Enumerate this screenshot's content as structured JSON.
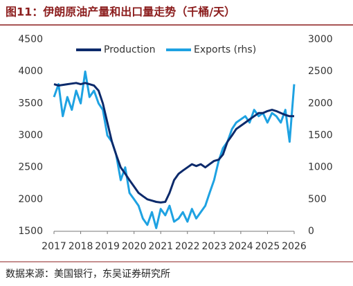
{
  "chart_data": {
    "type": "line",
    "title": "图11：伊朗原油产量和出口量走势（千桶/天）",
    "source": "数据来源：美国银行，东吴证券研究所",
    "x": [
      2017,
      2017.17,
      2017.33,
      2017.5,
      2017.67,
      2017.83,
      2018,
      2018.17,
      2018.33,
      2018.5,
      2018.67,
      2018.83,
      2019,
      2019.17,
      2019.33,
      2019.5,
      2019.67,
      2019.83,
      2020,
      2020.17,
      2020.33,
      2020.5,
      2020.67,
      2020.83,
      2021,
      2021.17,
      2021.33,
      2021.5,
      2021.67,
      2021.83,
      2022,
      2022.17,
      2022.33,
      2022.5,
      2022.67,
      2022.83,
      2023,
      2023.17,
      2023.33,
      2023.5,
      2023.67,
      2023.83,
      2024,
      2024.17,
      2024.33,
      2024.5,
      2024.67,
      2024.83,
      2025,
      2025.17,
      2025.33,
      2025.5,
      2025.67,
      2025.83,
      2026
    ],
    "series": [
      {
        "name": "Production",
        "color": "#0c2a6b",
        "axis": "y",
        "values": [
          3800,
          3780,
          3790,
          3800,
          3810,
          3820,
          3800,
          3820,
          3800,
          3780,
          3700,
          3500,
          3200,
          2900,
          2700,
          2500,
          2400,
          2300,
          2200,
          2100,
          2050,
          2000,
          1980,
          1960,
          1950,
          1960,
          2100,
          2300,
          2400,
          2450,
          2500,
          2550,
          2520,
          2550,
          2500,
          2550,
          2600,
          2620,
          2700,
          2900,
          3000,
          3100,
          3150,
          3200,
          3250,
          3300,
          3350,
          3350,
          3380,
          3400,
          3380,
          3350,
          3320,
          3300,
          3300
        ]
      },
      {
        "name": "Exports (rhs)",
        "color": "#1ea2e2",
        "axis": "y2",
        "values": [
          2100,
          2300,
          1800,
          2100,
          1900,
          2200,
          2000,
          2500,
          2100,
          2200,
          2000,
          1900,
          1500,
          1400,
          1200,
          800,
          1000,
          600,
          500,
          400,
          200,
          100,
          300,
          50,
          350,
          250,
          400,
          150,
          200,
          300,
          150,
          350,
          200,
          300,
          400,
          600,
          800,
          1100,
          1300,
          1400,
          1600,
          1700,
          1750,
          1800,
          1700,
          1900,
          1800,
          1850,
          1700,
          1850,
          1800,
          1700,
          1900,
          1400,
          2300
        ]
      }
    ],
    "xlim": [
      2017,
      2026
    ],
    "xticks": [
      2017,
      2018,
      2019,
      2020,
      2021,
      2022,
      2023,
      2024,
      2025,
      2026
    ],
    "ylim": [
      1500,
      4500
    ],
    "yticks": [
      1500,
      2000,
      2500,
      3000,
      3500,
      4000,
      4500
    ],
    "y2lim": [
      0,
      3000
    ],
    "y2ticks": [
      0,
      500,
      1000,
      1500,
      2000,
      2500,
      3000
    ],
    "legend": "top-left"
  }
}
